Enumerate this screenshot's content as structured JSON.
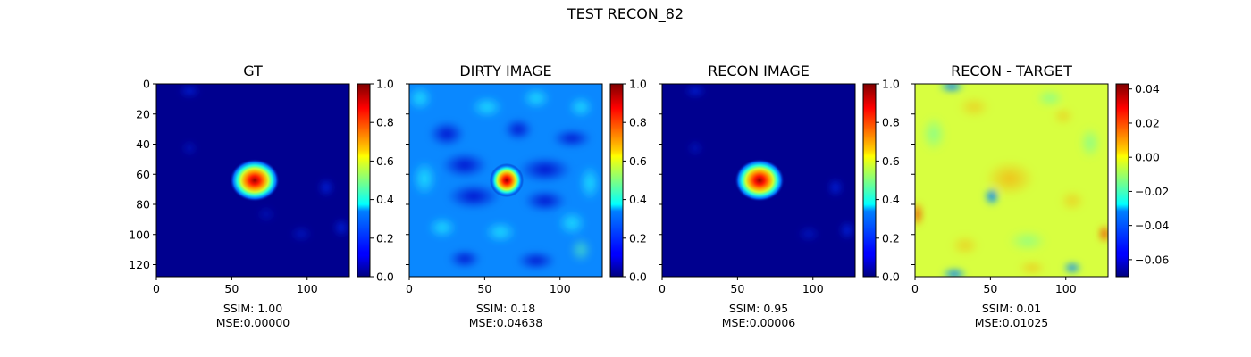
{
  "suptitle": "TEST RECON_82",
  "chart_data": [
    {
      "type": "heatmap",
      "title": "GT",
      "colormap": "jet",
      "xticks": [
        "0",
        "50",
        "100"
      ],
      "yticks": [
        "0",
        "20",
        "40",
        "60",
        "80",
        "100",
        "120"
      ],
      "xlim": [
        0,
        128
      ],
      "ylim": [
        128,
        0
      ],
      "colorbar": {
        "range": [
          0.0,
          1.0
        ],
        "ticks": [
          "0.0",
          "0.2",
          "0.4",
          "0.6",
          "0.8",
          "1.0"
        ]
      },
      "caption": [
        "SSIM: 1.00",
        "MSE:0.00000"
      ]
    },
    {
      "type": "heatmap",
      "title": "DIRTY IMAGE",
      "colormap": "jet",
      "xticks": [
        "0",
        "50",
        "100"
      ],
      "xlim": [
        0,
        128
      ],
      "ylim": [
        128,
        0
      ],
      "colorbar": {
        "range": [
          0.0,
          1.0
        ],
        "ticks": [
          "0.0",
          "0.2",
          "0.4",
          "0.6",
          "0.8",
          "1.0"
        ]
      },
      "caption": [
        "SSIM: 0.18",
        "MSE:0.04638"
      ]
    },
    {
      "type": "heatmap",
      "title": "RECON IMAGE",
      "colormap": "jet",
      "xticks": [
        "0",
        "50",
        "100"
      ],
      "xlim": [
        0,
        128
      ],
      "ylim": [
        128,
        0
      ],
      "colorbar": {
        "range": [
          0.0,
          1.0
        ],
        "ticks": [
          "0.0",
          "0.2",
          "0.4",
          "0.6",
          "0.8",
          "1.0"
        ]
      },
      "caption": [
        "SSIM: 0.95",
        "MSE:0.00006"
      ]
    },
    {
      "type": "heatmap",
      "title": "RECON - TARGET",
      "colormap": "jet",
      "xticks": [
        "0",
        "50",
        "100"
      ],
      "xlim": [
        0,
        128
      ],
      "ylim": [
        128,
        0
      ],
      "colorbar": {
        "range": [
          -0.07,
          0.043
        ],
        "ticks": [
          "0.04",
          "0.02",
          "0.00",
          "−0.02",
          "−0.04",
          "−0.06"
        ]
      },
      "caption": [
        "SSIM: 0.01",
        "MSE:0.01025"
      ]
    }
  ]
}
